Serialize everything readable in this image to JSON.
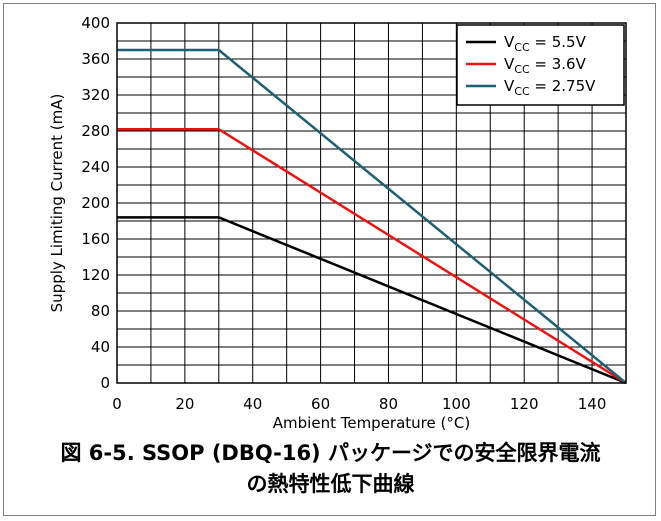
{
  "caption": {
    "line1": "図 6-5. SSOP (DBQ-16) パッケージでの安全限界電流",
    "line2": "の熱特性低下曲線"
  },
  "chart_data": {
    "type": "line",
    "xlabel": "Ambient Temperature (°C)",
    "ylabel": "Supply Limiting Current (mA)",
    "xlim": [
      0,
      150
    ],
    "ylim": [
      0,
      400
    ],
    "xticks": [
      0,
      20,
      40,
      60,
      80,
      100,
      120,
      140
    ],
    "yticks": [
      0,
      40,
      80,
      120,
      160,
      200,
      240,
      280,
      320,
      360,
      400
    ],
    "grid": true,
    "legend_position": "top-right",
    "series": [
      {
        "name": "V_CC = 5.5V",
        "label_main": "V",
        "label_sub": "CC",
        "label_rest": " = 5.5V",
        "color": "#000000",
        "x": [
          0,
          30,
          150
        ],
        "y": [
          184,
          184,
          0
        ]
      },
      {
        "name": "V_CC = 3.6V",
        "label_main": "V",
        "label_sub": "CC",
        "label_rest": " = 3.6V",
        "color": "#ee1111",
        "x": [
          0,
          30,
          150
        ],
        "y": [
          282,
          282,
          0
        ]
      },
      {
        "name": "V_CC = 2.75V",
        "label_main": "V",
        "label_sub": "CC",
        "label_rest": " = 2.75V",
        "color": "#1f5f73",
        "x": [
          0,
          30,
          150
        ],
        "y": [
          370,
          370,
          0
        ]
      }
    ]
  }
}
